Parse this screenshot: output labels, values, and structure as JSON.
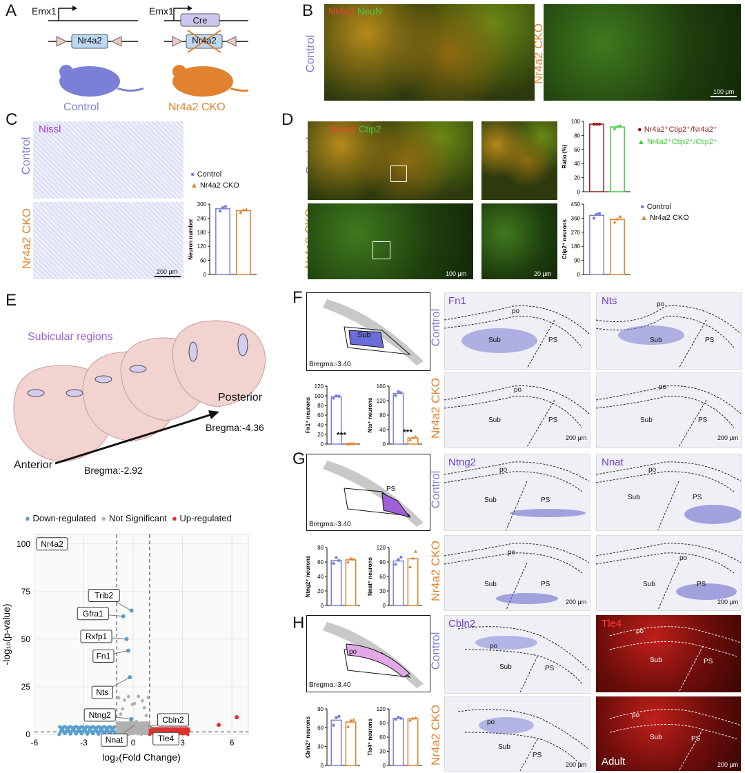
{
  "panels": {
    "A": "A",
    "B": "B",
    "C": "C",
    "D": "D",
    "E": "E",
    "F": "F",
    "G": "G",
    "H": "H"
  },
  "panelA": {
    "promoter1": "Emx1",
    "gene1": "Nr4a2",
    "label1": "Control",
    "promoter2": "Emx1",
    "cre": "Cre",
    "gene2": "Nr4a2",
    "label2": "Nr4a2 CKO"
  },
  "panelB": {
    "stain_red": "Nr4a2",
    "stain_green": "NeuN",
    "control": "Control",
    "cko": "Nr4a2 CKO",
    "scale": "100 μm"
  },
  "panelC": {
    "stain": "Nissl",
    "control": "Control",
    "cko": "Nr4a2 CKO",
    "scale": "200 μm",
    "legend": [
      "Control",
      "Nr4a2 CKO"
    ]
  },
  "panelD": {
    "stain_red": "Nr4a2",
    "stain_green": "Ctip2",
    "control": "Control",
    "cko": "Nr4a2 CKO",
    "scale1": "100 μm",
    "scale2": "20 μm",
    "legend_ratio": [
      "Nr4a2⁺Ctip2⁺/Nr4a2⁺",
      "Nr4a2⁺Ctip2⁺/Ctip2⁺"
    ],
    "legend_count": [
      "Control",
      "Nr4a2 CKO"
    ]
  },
  "panelE": {
    "title": "Subicular regions",
    "posterior": "Posterior",
    "anterior": "Anterior",
    "bregma_post": "Bregma:-4.36",
    "bregma_ant": "Bregma:-2.92"
  },
  "panelF": {
    "bregma": "Bregma:-3.40",
    "region": "Sub",
    "gene1": "Fn1",
    "gene2": "Nts",
    "control": "Control",
    "cko": "Nr4a2 CKO",
    "po": "po",
    "sub": "Sub",
    "ps": "PS",
    "scale": "200 μm",
    "sig": "***"
  },
  "panelG": {
    "bregma": "Bregma:-3.40",
    "region": "PS",
    "gene1": "Ntng2",
    "gene2": "Nnat",
    "control": "Control",
    "cko": "Nr4a2 CKO",
    "po": "po",
    "sub": "Sub",
    "ps": "PS",
    "scale": "200 μm"
  },
  "panelH": {
    "bregma": "Bregma:-3.40",
    "region": "po",
    "gene1": "Cbln2",
    "gene2": "Tle4",
    "control": "Control",
    "cko": "Nr4a2 CKO",
    "po": "po",
    "sub": "Sub",
    "ps": "PS",
    "scale": "200 μm",
    "adult": "Adult"
  },
  "colors": {
    "control": "#7b7fd8",
    "cko": "#e0822e",
    "down": "#5aa0d0",
    "ns": "#b0b0b0",
    "up": "#e03030",
    "ratio1": "#8b1a1a",
    "ratio2": "#3ccc3c"
  },
  "chart_data": [
    {
      "id": "C-neuron",
      "type": "bar",
      "ylabel": "Neuron number",
      "ylim": [
        0,
        300
      ],
      "yticks": [
        0,
        60,
        120,
        180,
        240,
        300
      ],
      "categories": [
        "Control",
        "Nr4a2 CKO"
      ],
      "values": [
        280,
        272
      ],
      "points": [
        [
          270,
          285,
          290
        ],
        [
          265,
          275,
          278
        ]
      ]
    },
    {
      "id": "D-ratio",
      "type": "bar",
      "ylabel": "Ratio (%)",
      "ylim": [
        0,
        100
      ],
      "yticks": [
        0,
        20,
        40,
        60,
        80,
        100
      ],
      "categories": [
        "Nr4a2⁺Ctip2⁺/Nr4a2⁺",
        "Nr4a2⁺Ctip2⁺/Ctip2⁺"
      ],
      "values": [
        96,
        92
      ],
      "points": [
        [
          96,
          96,
          96
        ],
        [
          90,
          93,
          94
        ]
      ]
    },
    {
      "id": "D-ctip2",
      "type": "bar",
      "ylabel": "Ctip2⁺ neurons",
      "ylim": [
        0,
        450
      ],
      "yticks": [
        0,
        90,
        180,
        270,
        360,
        450
      ],
      "categories": [
        "Control",
        "Nr4a2 CKO"
      ],
      "values": [
        378,
        352
      ],
      "points": [
        [
          360,
          385,
          390
        ],
        [
          335,
          355,
          370
        ]
      ]
    },
    {
      "id": "F-fn1",
      "type": "bar",
      "ylabel": "Fn1⁺ neurons",
      "ylim": [
        0,
        120
      ],
      "yticks": [
        0,
        20,
        40,
        60,
        80,
        100,
        120
      ],
      "categories": [
        "Control",
        "Nr4a2 CKO"
      ],
      "values": [
        98,
        1
      ],
      "points": [
        [
          95,
          100,
          99
        ],
        [
          0,
          1,
          1
        ]
      ]
    },
    {
      "id": "F-nts",
      "type": "bar",
      "ylabel": "Nts⁺ neurons",
      "ylim": [
        0,
        160
      ],
      "yticks": [
        0,
        40,
        80,
        120,
        160
      ],
      "categories": [
        "Control",
        "Nr4a2 CKO"
      ],
      "values": [
        140,
        17
      ],
      "points": [
        [
          134,
          145,
          142
        ],
        [
          12,
          18,
          20
        ]
      ]
    },
    {
      "id": "G-ntng2",
      "type": "bar",
      "ylabel": "Ntng2⁺ neurons",
      "ylim": [
        0,
        80
      ],
      "yticks": [
        0,
        20,
        40,
        60,
        80
      ],
      "categories": [
        "Control",
        "Nr4a2 CKO"
      ],
      "values": [
        62,
        63
      ],
      "points": [
        [
          58,
          66,
          62
        ],
        [
          60,
          65,
          64
        ]
      ]
    },
    {
      "id": "G-nnat",
      "type": "bar",
      "ylabel": "Nnat⁺ neurons",
      "ylim": [
        0,
        120
      ],
      "yticks": [
        0,
        30,
        60,
        90,
        120
      ],
      "categories": [
        "Control",
        "Nr4a2 CKO"
      ],
      "values": [
        92,
        97
      ],
      "points": [
        [
          85,
          95,
          100
        ],
        [
          80,
          98,
          112
        ]
      ]
    },
    {
      "id": "H-cbln2",
      "type": "bar",
      "ylabel": "Cbln2⁺ neurons",
      "ylim": [
        0,
        90
      ],
      "yticks": [
        0,
        30,
        60,
        90
      ],
      "categories": [
        "Control",
        "Nr4a2 CKO"
      ],
      "values": [
        72,
        69
      ],
      "points": [
        [
          64,
          76,
          78
        ],
        [
          62,
          72,
          73
        ]
      ]
    },
    {
      "id": "H-tle4",
      "type": "bar",
      "ylabel": "Tle4⁺ neurons",
      "ylim": [
        0,
        120
      ],
      "yticks": [
        0,
        30,
        60,
        90,
        120
      ],
      "categories": [
        "Control",
        "Nr4a2 CKO"
      ],
      "values": [
        100,
        99
      ],
      "points": [
        [
          98,
          102,
          100
        ],
        [
          96,
          100,
          101
        ]
      ]
    },
    {
      "id": "E-volcano",
      "type": "scatter",
      "xlabel": "log₂(Fold Change)",
      "ylabel": "-log₁₀(p-value)",
      "xlim": [
        -6,
        7
      ],
      "ylim": [
        0,
        105
      ],
      "xticks": [
        -6,
        -3,
        0,
        3,
        6
      ],
      "yticks": [
        0,
        25,
        50,
        75,
        100
      ],
      "legend": [
        "Down-regulated",
        "Not Significant",
        "Up-regulated"
      ],
      "labeled": [
        {
          "name": "Nr4a2",
          "x": -5.6,
          "y": 100
        },
        {
          "name": "Trib2",
          "x": -0.1,
          "y": 65
        },
        {
          "name": "Gfra1",
          "x": -0.6,
          "y": 62
        },
        {
          "name": "Rxfp1",
          "x": -0.4,
          "y": 50
        },
        {
          "name": "Fn1",
          "x": -0.3,
          "y": 44
        },
        {
          "name": "Nts",
          "x": -0.2,
          "y": 30
        },
        {
          "name": "Ntng2",
          "x": -0.1,
          "y": 8
        },
        {
          "name": "Nnat",
          "x": 0.1,
          "y": 5
        },
        {
          "name": "Cbln2",
          "x": 1.0,
          "y": 4
        },
        {
          "name": "Tle4",
          "x": 0.9,
          "y": 5
        }
      ]
    }
  ]
}
